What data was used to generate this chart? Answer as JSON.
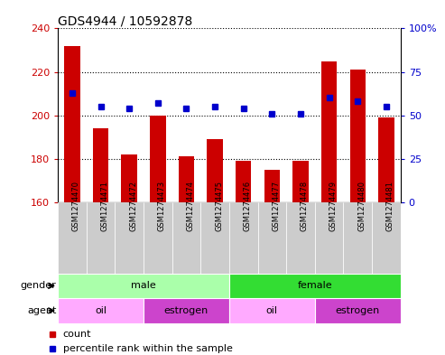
{
  "title": "GDS4944 / 10592878",
  "samples": [
    "GSM1274470",
    "GSM1274471",
    "GSM1274472",
    "GSM1274473",
    "GSM1274474",
    "GSM1274475",
    "GSM1274476",
    "GSM1274477",
    "GSM1274478",
    "GSM1274479",
    "GSM1274480",
    "GSM1274481"
  ],
  "counts": [
    232,
    194,
    182,
    200,
    181,
    189,
    179,
    175,
    179,
    225,
    221,
    199
  ],
  "percentile": [
    63,
    55,
    54,
    57,
    54,
    55,
    54,
    51,
    51,
    60,
    58,
    55
  ],
  "ylim_left": [
    160,
    240
  ],
  "ylim_right": [
    0,
    100
  ],
  "yticks_left": [
    160,
    180,
    200,
    220,
    240
  ],
  "yticks_right": [
    0,
    25,
    50,
    75,
    100
  ],
  "gender_groups": [
    {
      "label": "male",
      "start": 0,
      "end": 6,
      "color": "#AAFFAA"
    },
    {
      "label": "female",
      "start": 6,
      "end": 12,
      "color": "#33DD33"
    }
  ],
  "agent_groups": [
    {
      "label": "oil",
      "start": 0,
      "end": 3,
      "color": "#FFAAFF"
    },
    {
      "label": "estrogen",
      "start": 3,
      "end": 6,
      "color": "#CC44CC"
    },
    {
      "label": "oil",
      "start": 6,
      "end": 9,
      "color": "#FFAAFF"
    },
    {
      "label": "estrogen",
      "start": 9,
      "end": 12,
      "color": "#CC44CC"
    }
  ],
  "bar_color": "#CC0000",
  "dot_color": "#0000CC",
  "bar_width": 0.55,
  "tick_bg_color": "#CCCCCC"
}
